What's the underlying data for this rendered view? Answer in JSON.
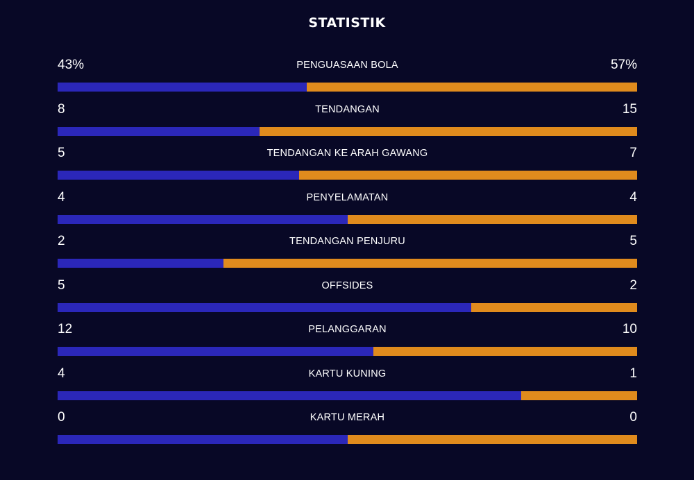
{
  "title": "STATISTIK",
  "colors": {
    "background": "#080826",
    "home": "#2b27b9",
    "away": "#e08b1d"
  },
  "stats": [
    {
      "label": "PENGUASAAN BOLA",
      "home": "43%",
      "away": "57%",
      "home_share": 0.43
    },
    {
      "label": "TENDANGAN",
      "home": "8",
      "away": "15",
      "home_share": 0.348
    },
    {
      "label": "TENDANGAN KE ARAH GAWANG",
      "home": "5",
      "away": "7",
      "home_share": 0.417
    },
    {
      "label": "PENYELAMATAN",
      "home": "4",
      "away": "4",
      "home_share": 0.5
    },
    {
      "label": "TENDANGAN PENJURU",
      "home": "2",
      "away": "5",
      "home_share": 0.286
    },
    {
      "label": "OFFSIDES",
      "home": "5",
      "away": "2",
      "home_share": 0.714
    },
    {
      "label": "PELANGGARAN",
      "home": "12",
      "away": "10",
      "home_share": 0.545
    },
    {
      "label": "KARTU KUNING",
      "home": "4",
      "away": "1",
      "home_share": 0.8
    },
    {
      "label": "KARTU MERAH",
      "home": "0",
      "away": "0",
      "home_share": 0.5
    }
  ]
}
